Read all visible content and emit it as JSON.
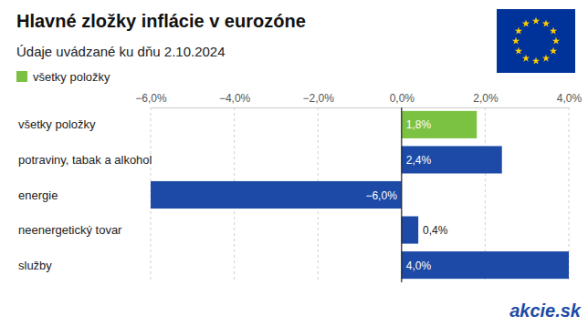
{
  "chart_data": {
    "type": "bar",
    "orientation": "horizontal",
    "title": "Hlavné zložky inflácie v eurozóne",
    "subtitle": "Údaje uvádzané ku dňu 2.10.2024",
    "categories": [
      "všetky položky",
      "potraviny, tabak a alkohol",
      "energie",
      "neenergetický tovar",
      "služby"
    ],
    "series": [
      {
        "name": "všetky položky",
        "colors": [
          "#7cc242",
          "#1c4aa6",
          "#1c4aa6",
          "#1c4aa6",
          "#1c4aa6"
        ],
        "values": [
          1.8,
          2.4,
          -6.0,
          0.4,
          4.0
        ],
        "value_labels": [
          "1,8%",
          "2,4%",
          "−6,0%",
          "0,4%",
          "4,0%"
        ]
      }
    ],
    "xlim": [
      -6,
      4
    ],
    "xticks": [
      {
        "value": -6,
        "label": "−6,0%"
      },
      {
        "value": -4,
        "label": "−4,0%"
      },
      {
        "value": -2,
        "label": "−2,0%"
      },
      {
        "value": 0,
        "label": "0,0%"
      },
      {
        "value": 2,
        "label": "2,0%"
      },
      {
        "value": 4,
        "label": "4,0%"
      }
    ],
    "grid": true,
    "data_labels": true,
    "legend": "top-left",
    "annotations": [
      "akcie.sk"
    ]
  }
}
